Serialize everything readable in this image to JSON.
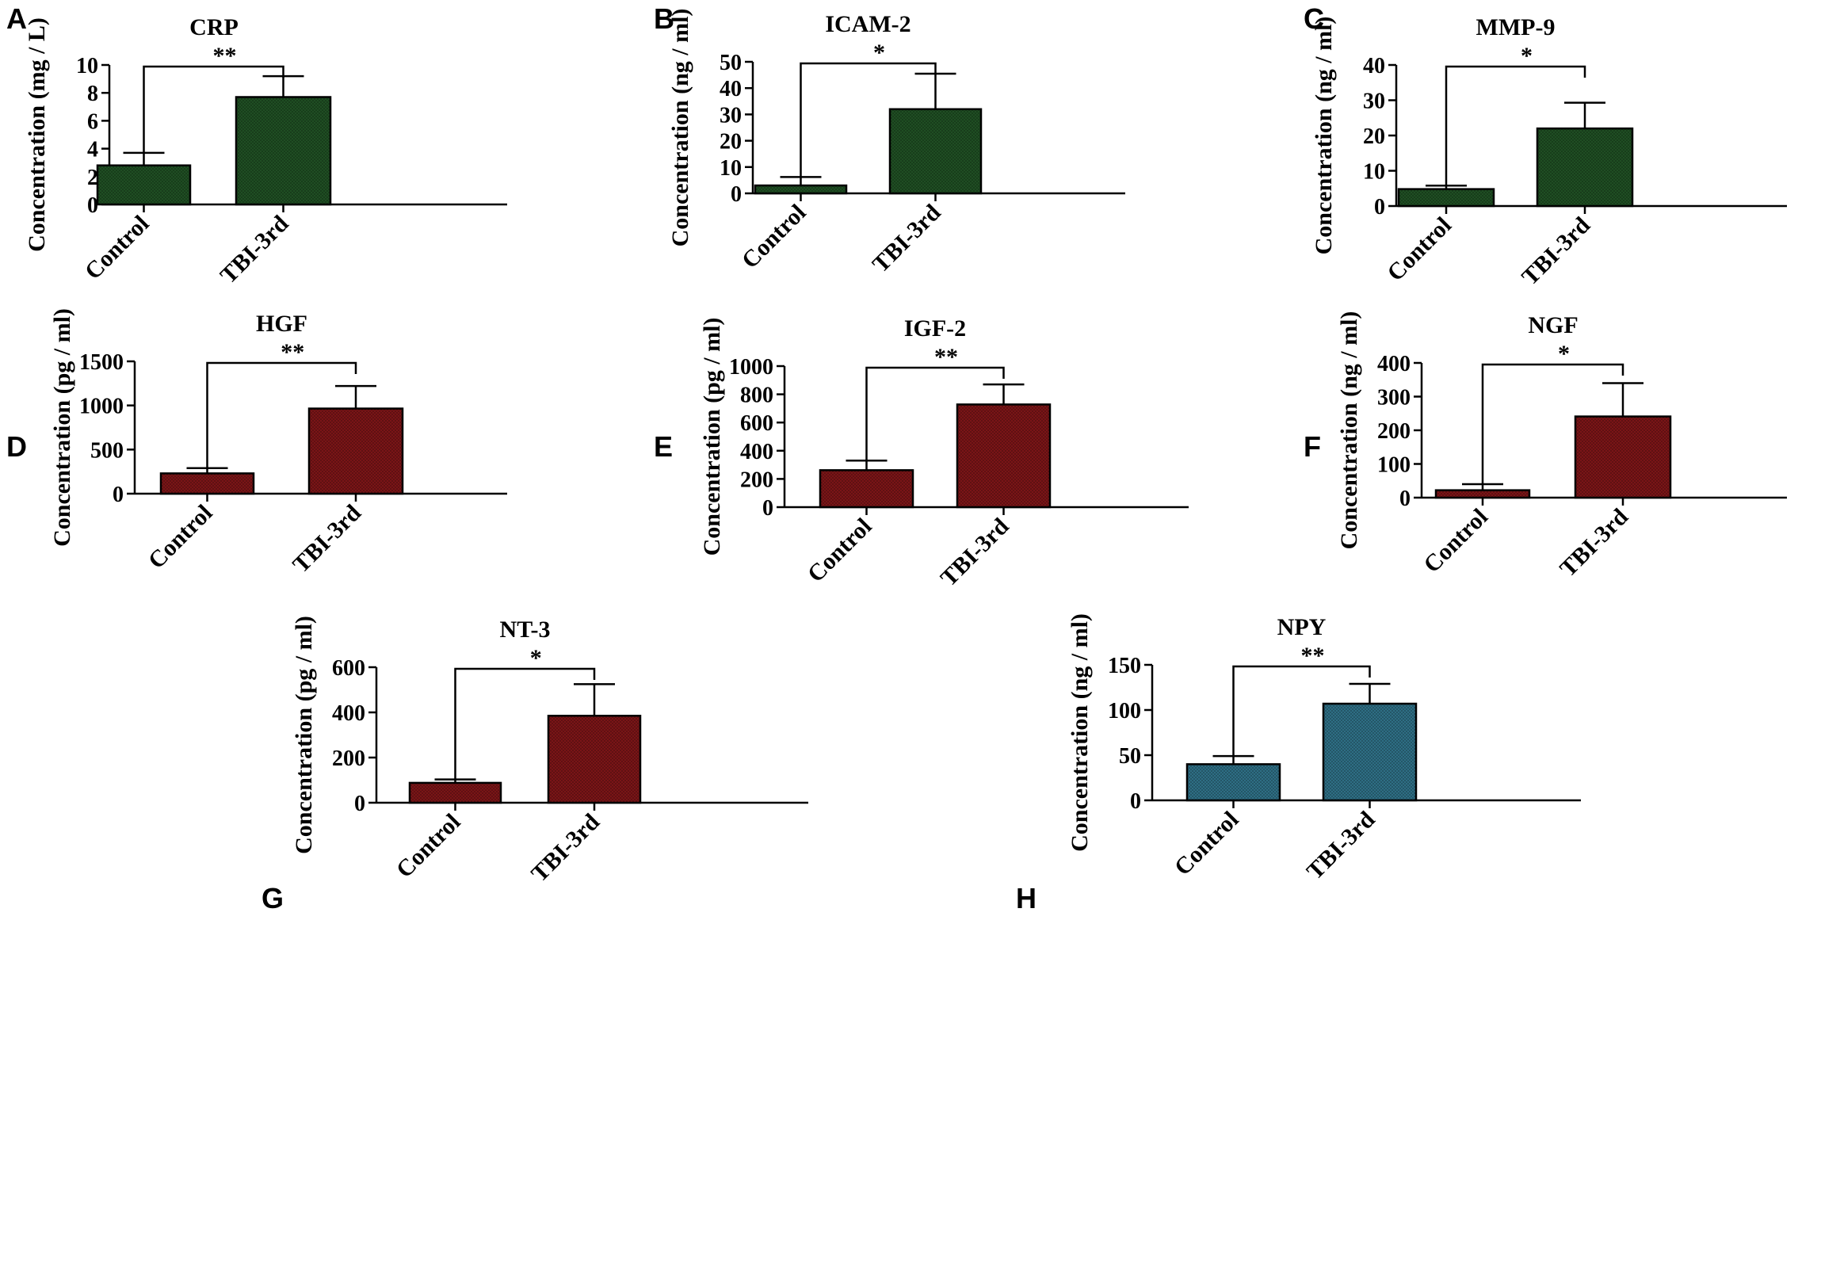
{
  "colors": {
    "green": "#1f4e23",
    "red": "#7a1517",
    "teal": "#2e6e84"
  },
  "chart_data": [
    {
      "panel": "A",
      "type": "bar",
      "title": "CRP",
      "ylabel": "Concentration (mg / L)",
      "xlabel": "",
      "categories": [
        "Control",
        "TBI-3rd"
      ],
      "values": [
        2.8,
        7.7
      ],
      "errors": [
        0.9,
        1.5
      ],
      "ylim": [
        0,
        10
      ],
      "yticks": [
        "0",
        "2",
        "4",
        "6",
        "8",
        "10"
      ],
      "significance": "**",
      "color": "green"
    },
    {
      "panel": "B",
      "type": "bar",
      "title": "ICAM-2",
      "ylabel": "Concentration (ng / ml)",
      "xlabel": "",
      "categories": [
        "Control",
        "TBI-3rd"
      ],
      "values": [
        3,
        32
      ],
      "errors": [
        3.2,
        13.5
      ],
      "ylim": [
        0,
        50
      ],
      "yticks": [
        "0",
        "10",
        "20",
        "30",
        "40",
        "50"
      ],
      "significance": "*",
      "color": "green"
    },
    {
      "panel": "C",
      "type": "bar",
      "title": "MMP-9",
      "ylabel": "Concentration (ng / ml)",
      "xlabel": "",
      "categories": [
        "Control",
        "TBI-3rd"
      ],
      "values": [
        4.8,
        22
      ],
      "errors": [
        1.0,
        7.3
      ],
      "ylim": [
        0,
        40
      ],
      "yticks": [
        "0",
        "10",
        "20",
        "30",
        "40"
      ],
      "significance": "*",
      "color": "green"
    },
    {
      "panel": "D",
      "type": "bar",
      "title": "HGF",
      "ylabel": "Concentration (pg / ml)",
      "xlabel": "",
      "categories": [
        "Control",
        "TBI-3rd"
      ],
      "values": [
        230,
        965
      ],
      "errors": [
        60,
        255
      ],
      "ylim": [
        0,
        1500
      ],
      "yticks": [
        "0",
        "500",
        "1000",
        "1500"
      ],
      "significance": "**",
      "color": "red"
    },
    {
      "panel": "E",
      "type": "bar",
      "title": "IGF-2",
      "ylabel": "Concentration (pg / ml)",
      "xlabel": "",
      "categories": [
        "Control",
        "TBI-3rd"
      ],
      "values": [
        262,
        728
      ],
      "errors": [
        68,
        142
      ],
      "ylim": [
        0,
        1000
      ],
      "yticks": [
        "0",
        "200",
        "400",
        "600",
        "800",
        "1000"
      ],
      "significance": "**",
      "color": "red"
    },
    {
      "panel": "F",
      "type": "bar",
      "title": "NGF",
      "ylabel": "Concentration (ng / ml)",
      "xlabel": "",
      "categories": [
        "Control",
        "TBI-3rd"
      ],
      "values": [
        22,
        241
      ],
      "errors": [
        18,
        99
      ],
      "ylim": [
        0,
        400
      ],
      "yticks": [
        "0",
        "100",
        "200",
        "300",
        "400"
      ],
      "significance": "*",
      "color": "red"
    },
    {
      "panel": "G",
      "type": "bar",
      "title": "NT-3",
      "ylabel": "Concentration (pg / ml)",
      "xlabel": "",
      "categories": [
        "Control",
        "TBI-3rd"
      ],
      "values": [
        88,
        385
      ],
      "errors": [
        15,
        140
      ],
      "ylim": [
        0,
        600
      ],
      "yticks": [
        "0",
        "200",
        "400",
        "600"
      ],
      "significance": "*",
      "color": "red"
    },
    {
      "panel": "H",
      "type": "bar",
      "title": "NPY",
      "ylabel": "Concentration (ng / ml)",
      "xlabel": "",
      "categories": [
        "Control",
        "TBI-3rd"
      ],
      "values": [
        40,
        107
      ],
      "errors": [
        9,
        22
      ],
      "ylim": [
        0,
        150
      ],
      "yticks": [
        "0",
        "50",
        "100",
        "150"
      ],
      "significance": "**",
      "color": "teal"
    }
  ]
}
